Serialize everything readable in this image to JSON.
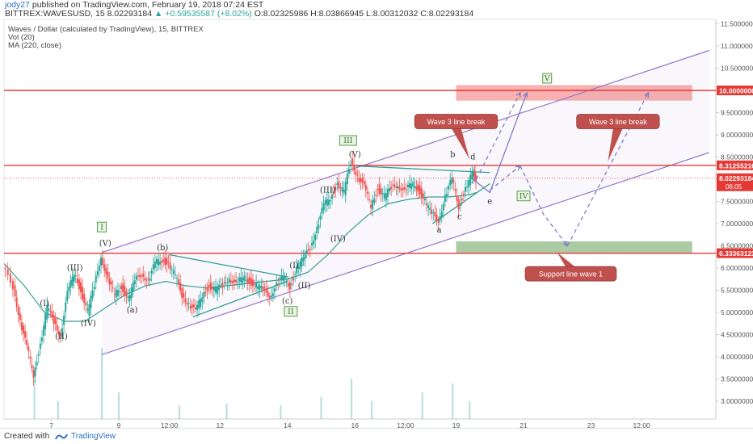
{
  "header": {
    "author": "jody27",
    "published": "published on TradingView.com, February 19, 2018 07:24 EST",
    "symbol_line": "BITTREX:WAVESUSD, 15",
    "last": "8.02293184",
    "change": "▲ +0.59535587 (+8.02%)",
    "ohlc": "O:8.02325986 H:8.03866945 L:8.00312032 C:8.02293184"
  },
  "legend": {
    "title": "Waves / Dollar (calculated by TradingView), 15, BITTREX",
    "vol": "Vol (20)",
    "ma": "MA (220, close)"
  },
  "colors": {
    "up": "#26a69a",
    "down": "#ef5350",
    "ma": "#3a9e94",
    "channel": "#9575cd",
    "resistance": "#e53935",
    "callout": "#c0504d",
    "projection": "#7e7ec8"
  },
  "chart_data": {
    "type": "candlestick",
    "ylim": [
      2.6,
      11.6
    ],
    "y_ticks": [
      "11.50000000",
      "11.00000000",
      "10.50000000",
      "10.00000000",
      "9.50000000",
      "9.00000000",
      "8.50000000",
      "8.00000000",
      "7.50000000",
      "7.00000000",
      "6.50000000",
      "6.00000000",
      "5.50000000",
      "5.00000000",
      "4.50000000",
      "4.00000000",
      "3.50000000",
      "3.00000000"
    ],
    "y_tick_values": [
      11.5,
      11.0,
      10.5,
      10.0,
      9.5,
      9.0,
      8.5,
      8.0,
      7.5,
      7.0,
      6.5,
      6.0,
      5.5,
      5.0,
      4.5,
      4.0,
      3.5,
      3.0
    ],
    "x_ticks": [
      {
        "label": "7",
        "day": 7.0
      },
      {
        "label": "9",
        "day": 9.0
      },
      {
        "label": "12:00",
        "day": 10.5
      },
      {
        "label": "12",
        "day": 12.0
      },
      {
        "label": "14",
        "day": 14.0
      },
      {
        "label": "16",
        "day": 16.0
      },
      {
        "label": "12:00",
        "day": 17.5
      },
      {
        "label": "19",
        "day": 19.0
      },
      {
        "label": "21",
        "day": 21.0
      },
      {
        "label": "23",
        "day": 23.0
      },
      {
        "label": "12:00",
        "day": 24.5
      }
    ],
    "x_range": [
      5.6,
      26.7
    ],
    "price_path": [
      [
        5.6,
        6.0
      ],
      [
        5.9,
        5.6
      ],
      [
        6.1,
        4.8
      ],
      [
        6.3,
        4.2
      ],
      [
        6.5,
        3.6
      ],
      [
        6.7,
        4.3
      ],
      [
        6.9,
        5.1
      ],
      [
        7.1,
        4.8
      ],
      [
        7.3,
        4.5
      ],
      [
        7.5,
        5.4
      ],
      [
        7.7,
        5.9
      ],
      [
        7.9,
        5.5
      ],
      [
        8.1,
        5.0
      ],
      [
        8.3,
        5.6
      ],
      [
        8.5,
        6.3
      ],
      [
        8.7,
        5.7
      ],
      [
        8.9,
        5.4
      ],
      [
        9.1,
        5.6
      ],
      [
        9.3,
        5.3
      ],
      [
        9.5,
        5.7
      ],
      [
        9.7,
        5.9
      ],
      [
        9.9,
        5.7
      ],
      [
        10.1,
        6.1
      ],
      [
        10.3,
        6.2
      ],
      [
        10.5,
        6.1
      ],
      [
        10.7,
        5.8
      ],
      [
        10.9,
        5.4
      ],
      [
        11.1,
        5.2
      ],
      [
        11.3,
        5.0
      ],
      [
        11.5,
        5.4
      ],
      [
        11.7,
        5.6
      ],
      [
        11.9,
        5.5
      ],
      [
        12.1,
        5.6
      ],
      [
        12.3,
        5.8
      ],
      [
        12.5,
        5.6
      ],
      [
        12.7,
        5.8
      ],
      [
        12.9,
        5.7
      ],
      [
        13.1,
        5.6
      ],
      [
        13.3,
        5.5
      ],
      [
        13.5,
        5.4
      ],
      [
        13.7,
        5.6
      ],
      [
        13.9,
        5.8
      ],
      [
        14.1,
        5.6
      ],
      [
        14.3,
        6.0
      ],
      [
        14.5,
        6.2
      ],
      [
        14.7,
        6.5
      ],
      [
        14.9,
        6.9
      ],
      [
        15.1,
        7.4
      ],
      [
        15.3,
        7.6
      ],
      [
        15.5,
        7.9
      ],
      [
        15.7,
        7.7
      ],
      [
        15.9,
        8.4
      ],
      [
        16.1,
        8.1
      ],
      [
        16.3,
        7.8
      ],
      [
        16.5,
        7.4
      ],
      [
        16.7,
        7.8
      ],
      [
        16.9,
        7.6
      ],
      [
        17.1,
        7.8
      ],
      [
        17.3,
        7.9
      ],
      [
        17.5,
        7.7
      ],
      [
        17.7,
        7.9
      ],
      [
        17.9,
        7.8
      ],
      [
        18.1,
        7.5
      ],
      [
        18.3,
        7.2
      ],
      [
        18.5,
        7.1
      ],
      [
        18.7,
        7.6
      ],
      [
        18.9,
        8.0
      ],
      [
        19.1,
        7.4
      ],
      [
        19.3,
        7.8
      ],
      [
        19.5,
        8.1
      ],
      [
        19.6,
        8.02
      ]
    ],
    "ma_path": [
      [
        5.6,
        6.1
      ],
      [
        6.2,
        5.6
      ],
      [
        6.8,
        5.0
      ],
      [
        7.4,
        4.8
      ],
      [
        8.0,
        4.8
      ],
      [
        8.6,
        5.1
      ],
      [
        9.2,
        5.4
      ],
      [
        9.8,
        5.6
      ],
      [
        10.4,
        5.7
      ],
      [
        11.0,
        5.6
      ],
      [
        11.6,
        5.55
      ],
      [
        12.2,
        5.6
      ],
      [
        12.8,
        5.65
      ],
      [
        13.4,
        5.7
      ],
      [
        14.0,
        5.75
      ],
      [
        14.6,
        5.9
      ],
      [
        15.2,
        6.3
      ],
      [
        15.8,
        6.8
      ],
      [
        16.4,
        7.2
      ],
      [
        17.0,
        7.45
      ],
      [
        17.6,
        7.55
      ],
      [
        18.2,
        7.6
      ],
      [
        18.8,
        7.6
      ],
      [
        19.4,
        7.65
      ],
      [
        19.6,
        7.7
      ]
    ],
    "volume": {
      "axis_bottom_value": 2.6,
      "bars": [
        [
          6.5,
          0.9
        ],
        [
          7.2,
          0.4
        ],
        [
          8.5,
          1.6
        ],
        [
          9.0,
          0.6
        ],
        [
          10.8,
          0.3
        ],
        [
          12.2,
          0.35
        ],
        [
          13.8,
          0.3
        ],
        [
          15.0,
          0.5
        ],
        [
          15.9,
          0.9
        ],
        [
          16.5,
          0.4
        ],
        [
          18.0,
          0.6
        ],
        [
          18.9,
          0.8
        ],
        [
          19.4,
          0.4
        ]
      ]
    },
    "horizontal_levels": [
      {
        "value": 10.0,
        "label": "10.00000000"
      },
      {
        "value": 8.31255216,
        "label": "8.31255216"
      },
      {
        "value": 6.33363123,
        "label": "6.33363123"
      }
    ],
    "last_price": {
      "value": 8.02293184,
      "label": "8.02293184",
      "countdown": "06:05"
    },
    "channel": {
      "upper": [
        [
          8.5,
          6.35
        ],
        [
          26.5,
          10.9
        ]
      ],
      "lower": [
        [
          8.5,
          4.05
        ],
        [
          26.5,
          8.6
        ]
      ]
    },
    "zones": [
      {
        "type": "resistance",
        "x": [
          19.0,
          26.0
        ],
        "y": [
          9.77,
          10.12
        ]
      },
      {
        "type": "support",
        "x": [
          19.0,
          26.0
        ],
        "y": [
          6.33,
          6.6
        ]
      }
    ],
    "triangles": [
      {
        "lines": [
          [
            [
              10.5,
              6.3
            ],
            [
              14.0,
              5.8
            ]
          ],
          [
            [
              11.2,
              4.9
            ],
            [
              14.0,
              5.7
            ]
          ]
        ]
      },
      {
        "lines": [
          [
            [
              16.0,
              8.3
            ],
            [
              20.0,
              8.15
            ]
          ],
          [
            [
              18.3,
              7.0
            ],
            [
              20.0,
              7.9
            ]
          ]
        ]
      }
    ],
    "projections": [
      {
        "style": "solid",
        "points": [
          [
            19.5,
            8.0
          ],
          [
            20.0,
            7.7
          ],
          [
            21.1,
            9.95
          ]
        ]
      },
      {
        "style": "dashed",
        "points": [
          [
            19.6,
            8.0
          ],
          [
            20.9,
            9.95
          ]
        ]
      },
      {
        "style": "dashed",
        "points": [
          [
            20.0,
            7.75
          ],
          [
            20.9,
            8.3
          ]
        ]
      },
      {
        "style": "dashed",
        "points": [
          [
            20.9,
            8.3
          ],
          [
            21.6,
            7.2
          ],
          [
            22.3,
            6.5
          ]
        ]
      },
      {
        "style": "dashed",
        "points": [
          [
            22.3,
            6.5
          ],
          [
            24.7,
            9.95
          ]
        ]
      }
    ],
    "wave_labels": [
      {
        "text": "(I)",
        "x": 6.8,
        "y": 5.15
      },
      {
        "text": "(II)",
        "x": 7.3,
        "y": 4.4
      },
      {
        "text": "(III)",
        "x": 7.7,
        "y": 5.95
      },
      {
        "text": "(IV)",
        "x": 8.1,
        "y": 4.7
      },
      {
        "text": "(V)",
        "x": 8.6,
        "y": 6.5
      },
      {
        "text": "(a)",
        "x": 9.4,
        "y": 5.0
      },
      {
        "text": "(b)",
        "x": 10.3,
        "y": 6.4
      },
      {
        "text": "(c)",
        "x": 14.0,
        "y": 5.2
      },
      {
        "text": "(I)",
        "x": 14.2,
        "y": 6.0
      },
      {
        "text": "(II)",
        "x": 14.5,
        "y": 5.55
      },
      {
        "text": "(III)",
        "x": 15.2,
        "y": 7.7
      },
      {
        "text": "(IV)",
        "x": 15.5,
        "y": 6.6
      },
      {
        "text": "(V)",
        "x": 16.0,
        "y": 8.5
      },
      {
        "text": "a",
        "x": 18.5,
        "y": 6.8
      },
      {
        "text": "b",
        "x": 18.9,
        "y": 8.5
      },
      {
        "text": "c",
        "x": 19.1,
        "y": 7.1
      },
      {
        "text": "d",
        "x": 19.5,
        "y": 8.45
      },
      {
        "text": "e",
        "x": 20.0,
        "y": 7.45
      }
    ],
    "boxed_labels": [
      {
        "text": "I",
        "x": 8.5,
        "y": 6.85
      },
      {
        "text": "II",
        "x": 14.1,
        "y": 4.95
      },
      {
        "text": "III",
        "x": 15.8,
        "y": 8.8
      },
      {
        "text": "IV",
        "x": 21.0,
        "y": 7.55
      },
      {
        "text": "V",
        "x": 21.7,
        "y": 10.2
      }
    ],
    "callouts": [
      {
        "text": "Wave 3 line break",
        "x": 19.0,
        "y": 9.3,
        "pointer": [
          19.4,
          8.45
        ]
      },
      {
        "text": "Wave 3 line break",
        "x": 23.8,
        "y": 9.3,
        "pointer": [
          23.5,
          8.4
        ]
      },
      {
        "text": "Support line wave 1",
        "x": 22.4,
        "y": 5.87,
        "pointer": [
          22.0,
          6.35
        ]
      }
    ]
  },
  "footer": {
    "created": "Created with",
    "brand": "TradingView"
  }
}
